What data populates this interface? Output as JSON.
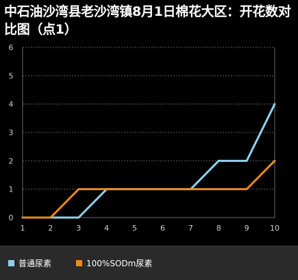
{
  "chart_data": {
    "type": "line",
    "title": "中石油沙湾县老沙湾镇8月1日棉花大区：开花数对比图（点1）",
    "x": [
      1,
      2,
      3,
      4,
      5,
      6,
      7,
      8,
      9,
      10
    ],
    "xlim": [
      1,
      10
    ],
    "ylim": [
      0,
      6
    ],
    "yticks": [
      0,
      1,
      2,
      3,
      4,
      5,
      6
    ],
    "grid": true,
    "legend_position": "bottom-left",
    "series": [
      {
        "name": "普通尿素",
        "color": "#8fd3ef",
        "values": [
          0,
          0,
          0,
          1,
          1,
          1,
          1,
          2,
          2,
          4
        ]
      },
      {
        "name": "100%SODm尿素",
        "color": "#ee8a1a",
        "values": [
          0,
          0,
          1,
          1,
          1,
          1,
          1,
          1,
          1,
          2
        ]
      }
    ]
  }
}
